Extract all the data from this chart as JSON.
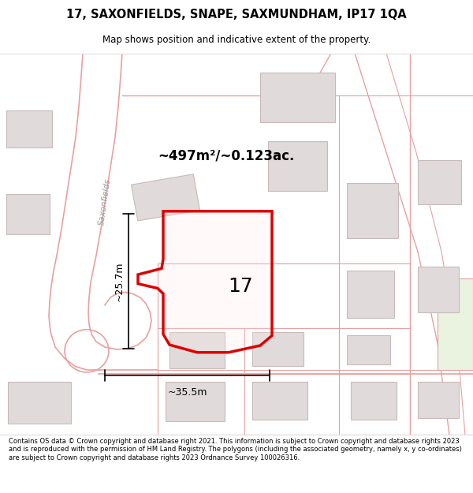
{
  "title": "17, SAXONFIELDS, SNAPE, SAXMUNDHAM, IP17 1QA",
  "subtitle": "Map shows position and indicative extent of the property.",
  "footer": "Contains OS data © Crown copyright and database right 2021. This information is subject to Crown copyright and database rights 2023 and is reproduced with the permission of HM Land Registry. The polygons (including the associated geometry, namely x, y co-ordinates) are subject to Crown copyright and database rights 2023 Ordnance Survey 100026316.",
  "map_bg": "#faf8f8",
  "road_color": "#e8a0a0",
  "building_fill": "#e0dada",
  "building_edge": "#c8baba",
  "highlight_color": "#dd0000",
  "area_text": "~497m²/~0.123ac.",
  "number_text": "17",
  "dim_width": "~35.5m",
  "dim_height": "~25.7m",
  "road_label": "Saxonfields"
}
